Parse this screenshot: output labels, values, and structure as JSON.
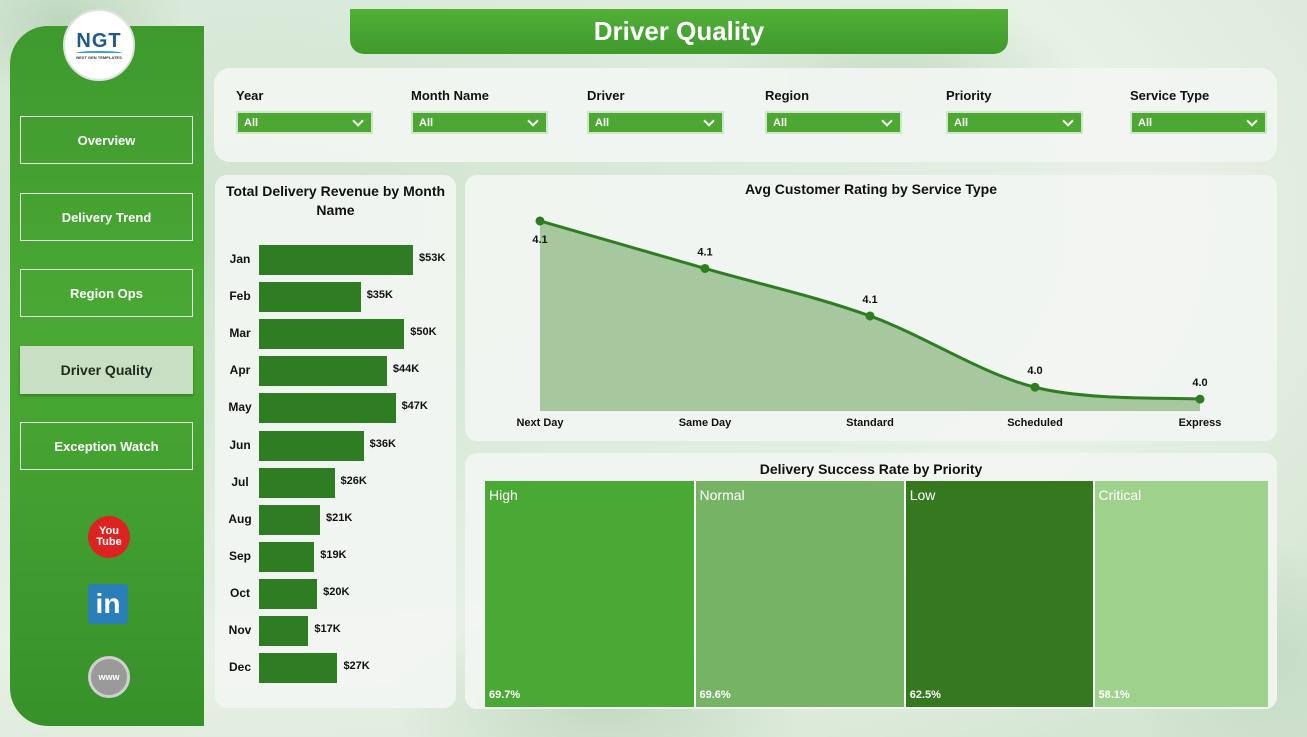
{
  "title": "Driver Quality",
  "logo": {
    "main": "NGT",
    "sub": "NEXT GEN TEMPLATES"
  },
  "nav": [
    {
      "label": "Overview",
      "active": false
    },
    {
      "label": "Delivery Trend",
      "active": false
    },
    {
      "label": "Region Ops",
      "active": false
    },
    {
      "label": "Driver Quality",
      "active": true
    },
    {
      "label": "Exception Watch",
      "active": false
    }
  ],
  "social": {
    "youtube_line1": "You",
    "youtube_line2": "Tube",
    "linkedin": "in",
    "web": "www"
  },
  "filters": [
    {
      "label": "Year",
      "value": "All"
    },
    {
      "label": "Month Name",
      "value": "All"
    },
    {
      "label": "Driver",
      "value": "All"
    },
    {
      "label": "Region",
      "value": "All"
    },
    {
      "label": "Priority",
      "value": "All"
    },
    {
      "label": "Service Type",
      "value": "All"
    }
  ],
  "chart_data": [
    {
      "type": "bar",
      "orientation": "horizontal",
      "title": "Total Delivery Revenue by Month Name",
      "categories": [
        "Jan",
        "Feb",
        "Mar",
        "Apr",
        "May",
        "Jun",
        "Jul",
        "Aug",
        "Sep",
        "Oct",
        "Nov",
        "Dec"
      ],
      "values": [
        53,
        35,
        50,
        44,
        47,
        36,
        26,
        21,
        19,
        20,
        17,
        27
      ],
      "data_labels": [
        "$53K",
        "$35K",
        "$50K",
        "$44K",
        "$47K",
        "$36K",
        "$26K",
        "$21K",
        "$19K",
        "$20K",
        "$17K",
        "$27K"
      ],
      "color": "#2f7d22"
    },
    {
      "type": "area",
      "title": "Avg Customer Rating by Service Type",
      "categories": [
        "Next Day",
        "Same Day",
        "Standard",
        "Scheduled",
        "Express"
      ],
      "values": [
        4.13,
        4.09,
        4.05,
        3.99,
        3.98
      ],
      "data_labels": [
        "4.1",
        "4.1",
        "4.1",
        "4.0",
        "4.0"
      ],
      "color": "#2f7d22",
      "fill": "#a7c79f"
    },
    {
      "type": "treemap",
      "title": "Delivery Success Rate by Priority",
      "categories": [
        "High",
        "Normal",
        "Low",
        "Critical"
      ],
      "values": [
        69.7,
        69.6,
        62.5,
        58.1
      ],
      "data_labels": [
        "69.7%",
        "69.6%",
        "62.5%",
        "58.1%"
      ],
      "colors": [
        "#4aa934",
        "#76b365",
        "#35781f",
        "#9ed18b"
      ]
    }
  ]
}
